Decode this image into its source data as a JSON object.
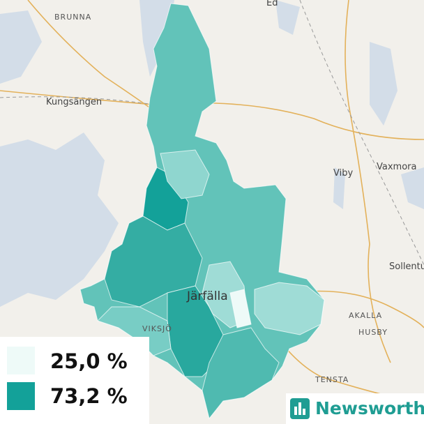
{
  "places": [
    {
      "label": "BRUNNA"
    },
    {
      "label": "Ed"
    },
    {
      "label": "Kungsängen"
    },
    {
      "label": "Viby"
    },
    {
      "label": "Vaxmora"
    },
    {
      "label": "Sollentuna"
    },
    {
      "label": "Järfälla"
    },
    {
      "label": "VIKSJÖ"
    },
    {
      "label": "AKALLA"
    },
    {
      "label": "HUSBY"
    },
    {
      "label": "TENSTA"
    }
  ],
  "legend": {
    "items": [
      {
        "value": 25.0,
        "label": "25,0 %",
        "color": "#eefaf8"
      },
      {
        "value": 73.2,
        "label": "73,2 %",
        "color": "#13a199"
      }
    ]
  },
  "brand": {
    "label": "Newsworthy"
  }
}
